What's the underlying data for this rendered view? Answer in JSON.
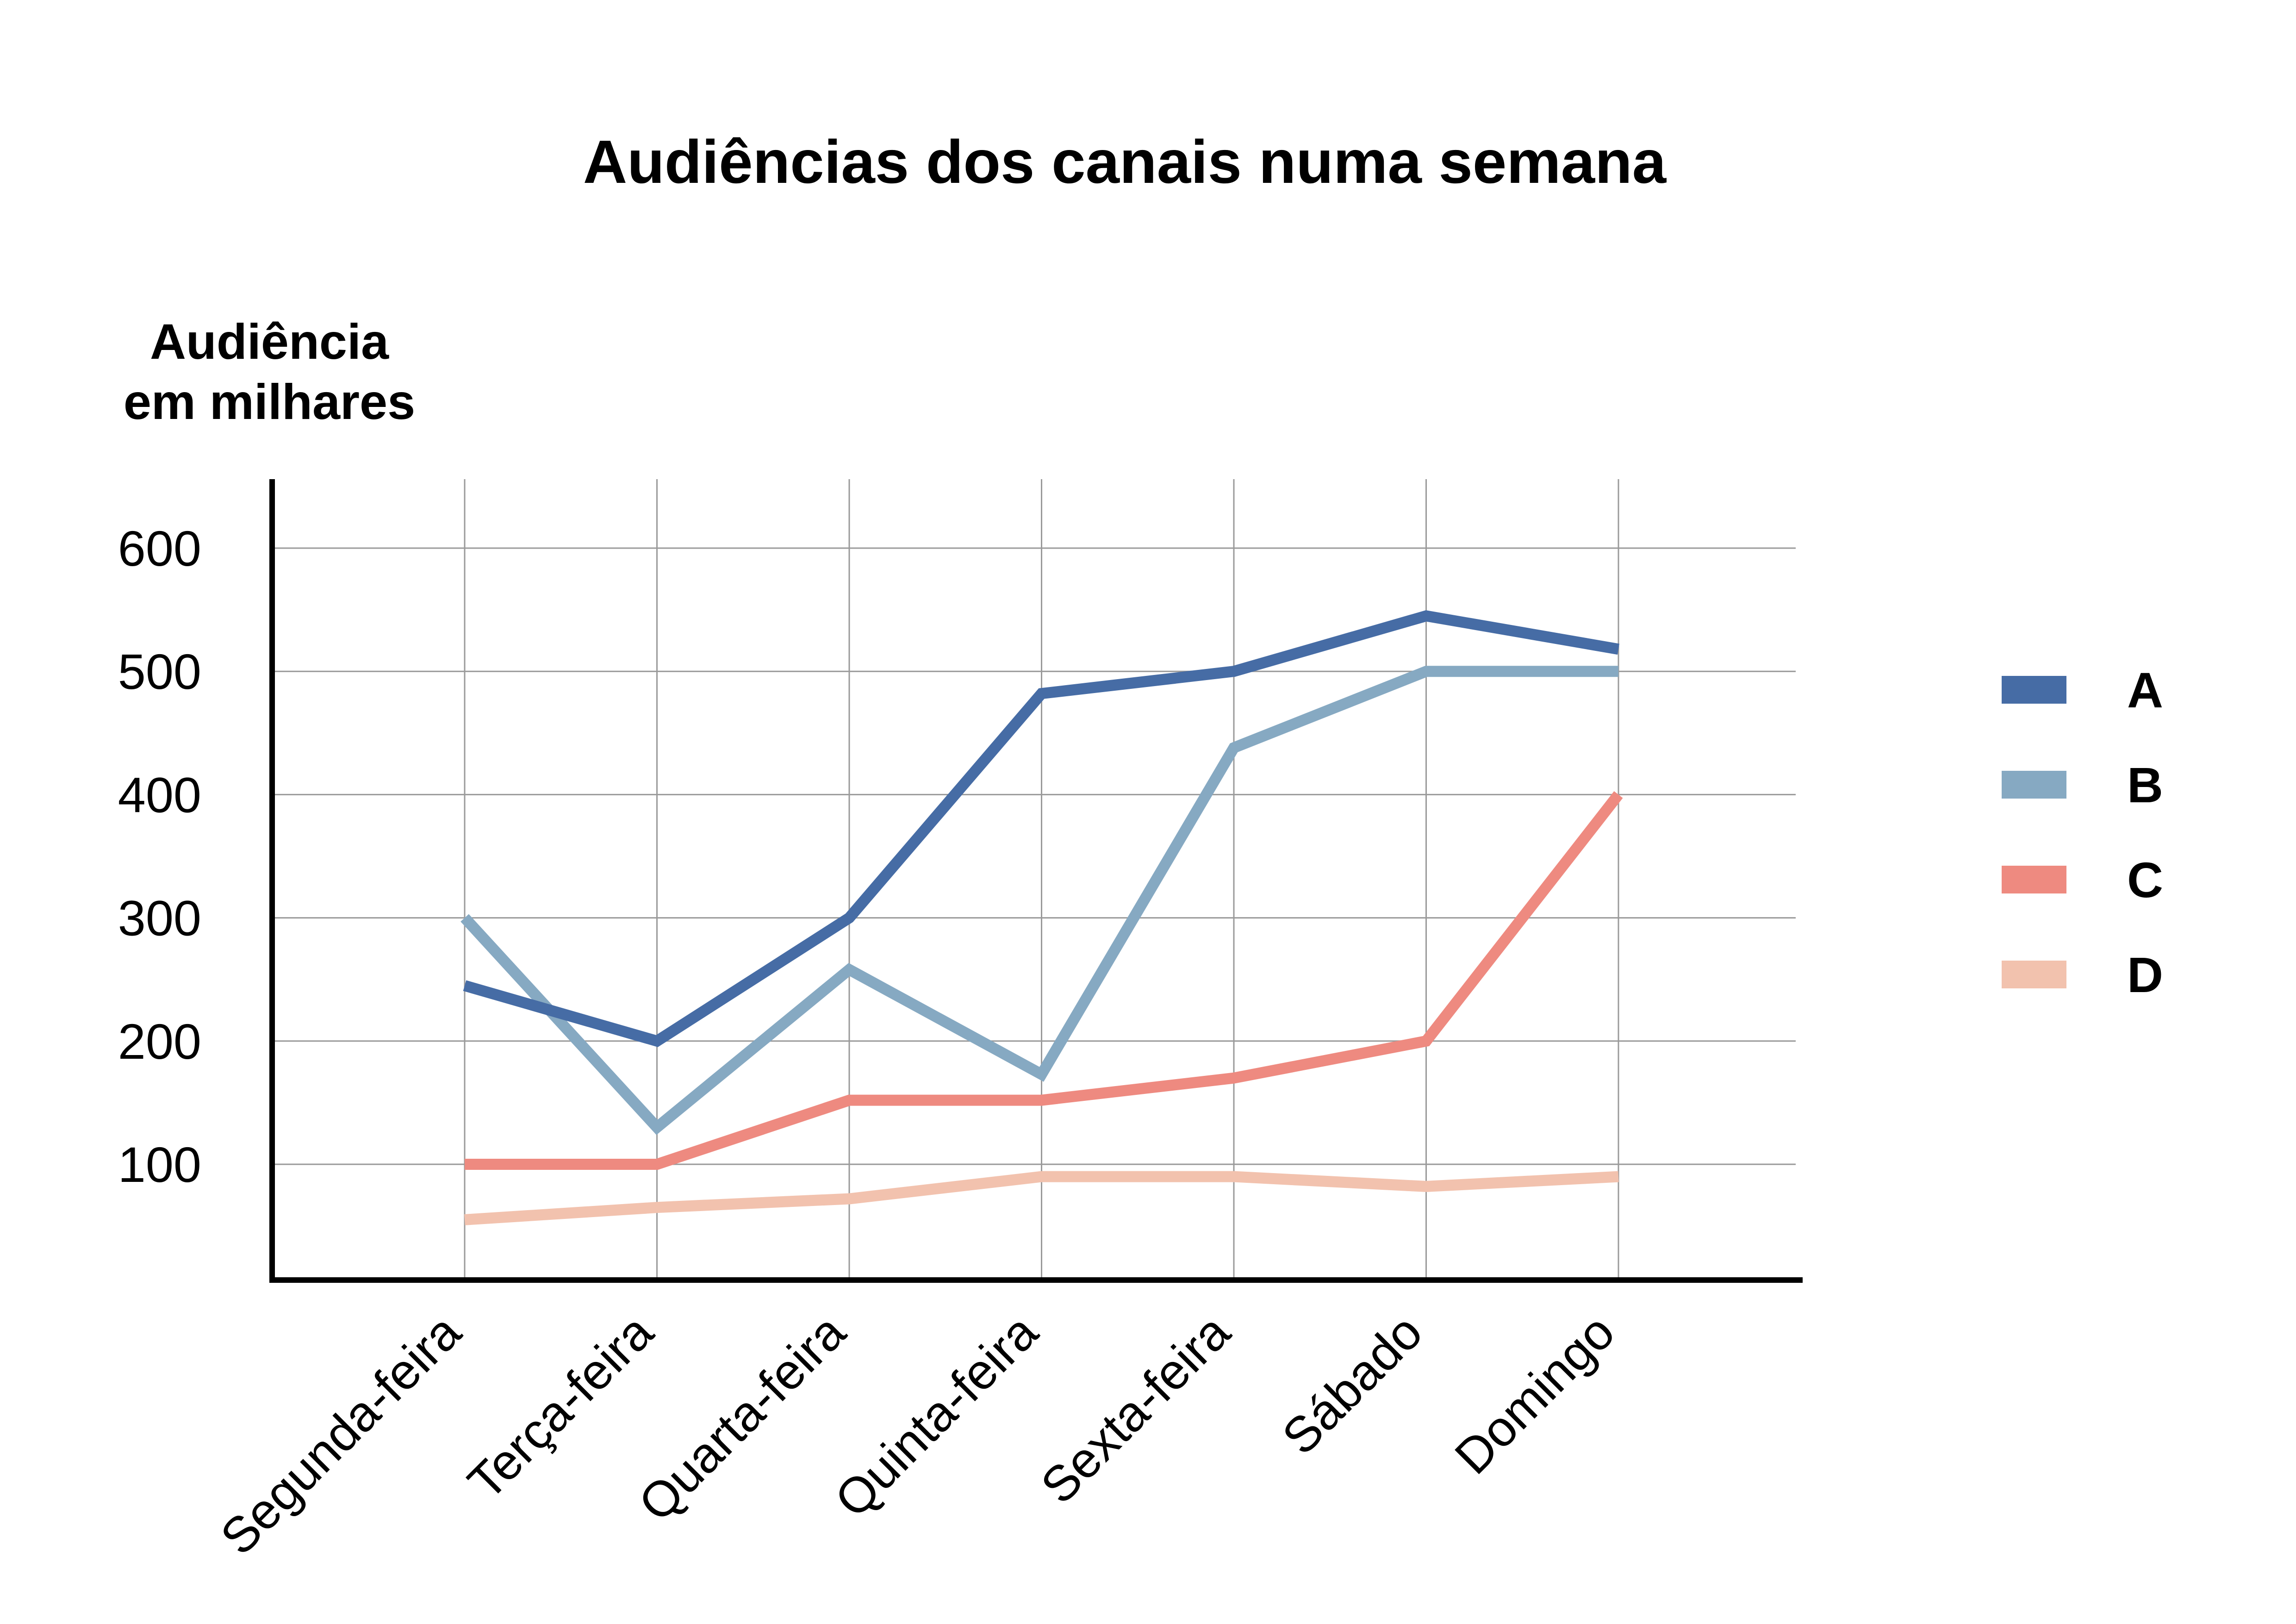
{
  "chart_data": {
    "type": "line",
    "title": "Audiências dos canais numa semana",
    "ylabel_lines": [
      "Audiência",
      "em milhares"
    ],
    "xlabel": "",
    "categories": [
      "Segunda-feira",
      "Terça-feira",
      "Quarta-feira",
      "Quinta-feira",
      "Sexta-feira",
      "Sábado",
      "Domingo"
    ],
    "ylim": [
      0,
      650
    ],
    "yticks": [
      100,
      200,
      300,
      400,
      500,
      600
    ],
    "grid": true,
    "legend_position": "right",
    "series": [
      {
        "name": "A",
        "color": "#466ca5",
        "values": [
          245,
          200,
          300,
          482,
          500,
          545,
          518
        ]
      },
      {
        "name": "B",
        "color": "#86a9c2",
        "values": [
          300,
          130,
          258,
          173,
          438,
          500,
          500
        ]
      },
      {
        "name": "C",
        "color": "#ee8a80",
        "values": [
          100,
          100,
          152,
          152,
          170,
          200,
          400
        ]
      },
      {
        "name": "D",
        "color": "#f2c2ae",
        "values": [
          55,
          65,
          72,
          90,
          90,
          82,
          90
        ]
      }
    ]
  }
}
